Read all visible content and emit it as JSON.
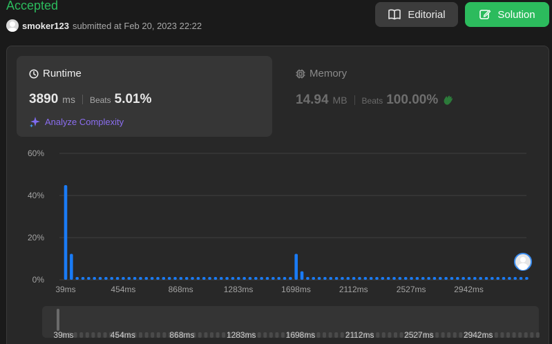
{
  "header": {
    "status": "Accepted",
    "username": "smoker123",
    "submitted_text": "submitted at Feb 20, 2023 22:22",
    "editorial_label": "Editorial",
    "solution_label": "Solution"
  },
  "runtime": {
    "title": "Runtime",
    "value": "3890",
    "unit": "ms",
    "beats_label": "Beats",
    "beats_value": "5.01%",
    "analyze_label": "Analyze Complexity"
  },
  "memory": {
    "title": "Memory",
    "value": "14.94",
    "unit": "MB",
    "beats_label": "Beats",
    "beats_value": "100.00%"
  },
  "colors": {
    "accepted": "#2cbb5d",
    "bar": "#1a7bf5",
    "analyze": "#8b6ef0",
    "memory_icon": "#2c7a3a"
  },
  "icons": {
    "editorial": "book-icon",
    "solution": "edit-icon",
    "runtime": "clock-icon",
    "memory": "chip-icon",
    "analyze": "sparkle-icon",
    "beats_memory": "clap-icon"
  },
  "chart_data": {
    "type": "bar",
    "y_ticks": [
      "60%",
      "40%",
      "20%",
      "0%"
    ],
    "ylim": [
      0,
      60
    ],
    "x_tick_labels": [
      "39ms",
      "454ms",
      "868ms",
      "1283ms",
      "1698ms",
      "2112ms",
      "2527ms",
      "2942ms"
    ],
    "x_range_ms": [
      39,
      3357
    ],
    "bar_step_ms": 41.5,
    "bar_count": 81,
    "values": [
      44.9,
      12.3,
      1.3,
      1.3,
      1.3,
      1.3,
      1.3,
      1.3,
      1.3,
      1.3,
      1.3,
      1.3,
      1.3,
      1.3,
      1.3,
      1.3,
      1.3,
      1.3,
      1.3,
      1.3,
      1.3,
      1.3,
      1.3,
      1.3,
      1.3,
      1.3,
      1.3,
      1.3,
      1.3,
      1.3,
      1.3,
      1.3,
      1.3,
      1.3,
      1.3,
      1.3,
      1.3,
      1.3,
      1.3,
      1.3,
      12.3,
      4.0,
      1.3,
      1.3,
      1.3,
      1.3,
      1.3,
      1.3,
      1.3,
      1.3,
      1.3,
      1.3,
      1.3,
      1.3,
      1.3,
      1.3,
      1.3,
      1.3,
      1.3,
      1.3,
      1.3,
      1.3,
      1.3,
      1.3,
      1.3,
      1.3,
      1.3,
      1.3,
      1.3,
      1.3,
      1.3,
      1.3,
      1.3,
      1.3,
      1.3,
      1.3,
      1.3,
      1.3,
      1.3,
      1.3,
      1.3
    ],
    "user_marker_ms": 3890,
    "grid": true
  },
  "slider": {
    "tick_labels": [
      "39ms",
      "454ms",
      "868ms",
      "1283ms",
      "1698ms",
      "2112ms",
      "2527ms",
      "2942ms"
    ]
  }
}
